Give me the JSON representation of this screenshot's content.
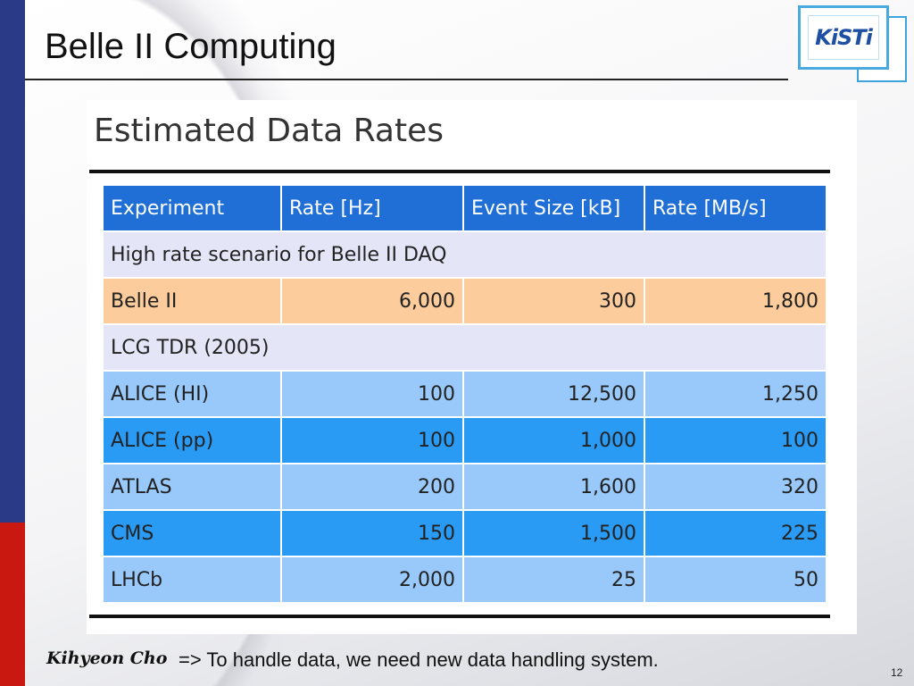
{
  "slide": {
    "title": "Belle II Computing",
    "logo_text": "KiSTi",
    "author": "Kihyeon Cho",
    "note": "=> To handle data, we need new data handling system.",
    "page_number": "12"
  },
  "colors": {
    "left_bar_blue": "#2b3a86",
    "left_bar_red": "#c8180f",
    "header_row": "#1f6fd6",
    "section_row": "#e4e5f7",
    "highlight_row": "#fdcc9c",
    "light_row": "#99c9fa",
    "mid_row": "#2a9bf4"
  },
  "panel": {
    "title": "Estimated Data Rates",
    "table": {
      "headers": [
        "Experiment",
        "Rate [Hz]",
        "Event Size [kB]",
        "Rate [MB/s]"
      ],
      "section_1": "High rate scenario for Belle II DAQ",
      "belle": [
        "Belle II",
        "6,000",
        "300",
        "1,800"
      ],
      "section_2": "LCG TDR (2005)",
      "rows": [
        [
          "ALICE (HI)",
          "100",
          "12,500",
          "1,250"
        ],
        [
          "ALICE (pp)",
          "100",
          "1,000",
          "100"
        ],
        [
          "ATLAS",
          "200",
          "1,600",
          "320"
        ],
        [
          "CMS",
          "150",
          "1,500",
          "225"
        ],
        [
          "LHCb",
          "2,000",
          "25",
          "50"
        ]
      ]
    }
  }
}
